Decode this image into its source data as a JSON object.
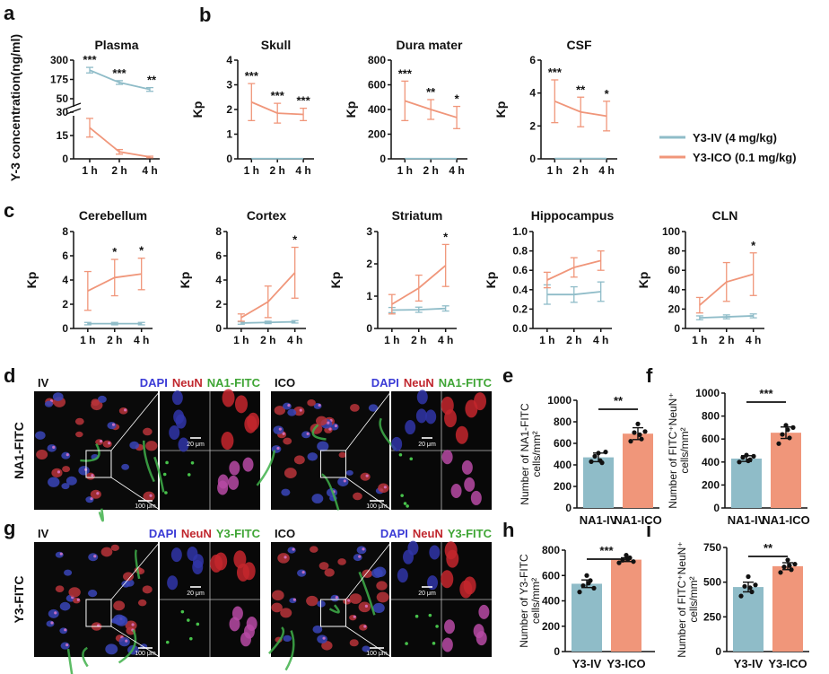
{
  "figure": {
    "colors": {
      "iv": "#8fbcc8",
      "ico": "#f0967a",
      "axis": "#111111",
      "dapi": "#3b3bd6",
      "neun": "#c0262d",
      "fitc": "#3fa535"
    },
    "panel_labels": {
      "a": "a",
      "b": "b",
      "c": "c",
      "d": "d",
      "e": "e",
      "f": "f",
      "g": "g",
      "h": "h",
      "i": "i"
    },
    "legend": {
      "iv": "Y3-IV (4 mg/kg)",
      "ico": "Y3-ICO (0.1 mg/kg)"
    },
    "micrographs": [
      {
        "condition": "IV",
        "stain_dapi": "DAPI",
        "stain_neun": "NeuN",
        "stain_fitc": "NA1-FITC",
        "scale_inset": "20 μm",
        "scale_main": "100 μm"
      },
      {
        "condition": "ICO",
        "stain_dapi": "DAPI",
        "stain_neun": "NeuN",
        "stain_fitc": "NA1-FITC",
        "scale_inset": "20 μm",
        "scale_main": "100 μm"
      },
      {
        "condition": "IV",
        "stain_dapi": "DAPI",
        "stain_neun": "NeuN",
        "stain_fitc": "Y3-FITC",
        "scale_inset": "20 μm",
        "scale_main": "100 μm"
      },
      {
        "condition": "ICO",
        "stain_dapi": "DAPI",
        "stain_neun": "NeuN",
        "stain_fitc": "Y3-FITC",
        "scale_inset": "20 μm",
        "scale_main": "100 μm"
      }
    ],
    "row_labels": {
      "d": "NA1-FITC",
      "g": "Y3-FITC"
    }
  },
  "chart_data": [
    {
      "id": "a",
      "type": "line",
      "title": "Plasma",
      "ylabel": "Y-3 concentration(ng/ml)",
      "xlabel": "",
      "categories": [
        "1 h",
        "2 h",
        "4 h"
      ],
      "broken_axis": true,
      "ylim_upper": [
        30,
        300
      ],
      "yticks_upper": [
        "300",
        "175",
        "50"
      ],
      "ylim_lower": [
        0,
        30
      ],
      "yticks_lower": [
        "30",
        "15",
        "0"
      ],
      "series": [
        {
          "name": "Y3-IV (4 mg/kg)",
          "values": [
            235,
            155,
            110
          ],
          "errors": [
            18,
            12,
            12
          ]
        },
        {
          "name": "Y3-ICO (0.1 mg/kg)",
          "values": [
            20,
            4.5,
            1.2
          ],
          "errors": [
            6,
            1.5,
            0.5
          ]
        }
      ],
      "annotations": [
        "***",
        "***",
        "**"
      ]
    },
    {
      "id": "skull",
      "type": "line",
      "title": "Skull",
      "ylabel": "Kp",
      "categories": [
        "1 h",
        "2 h",
        "4 h"
      ],
      "ylim": [
        0,
        4
      ],
      "yticks": [
        "0",
        "1",
        "2",
        "3",
        "4"
      ],
      "series": [
        {
          "name": "Y3-IV (4 mg/kg)",
          "values": [
            0.01,
            0.01,
            0.01
          ],
          "errors": [
            0,
            0,
            0
          ]
        },
        {
          "name": "Y3-ICO (0.1 mg/kg)",
          "values": [
            2.3,
            1.85,
            1.8
          ],
          "errors": [
            0.75,
            0.4,
            0.25
          ]
        }
      ],
      "annotations": [
        "***",
        "***",
        "***"
      ]
    },
    {
      "id": "dura",
      "type": "line",
      "title": "Dura mater",
      "ylabel": "Kp",
      "categories": [
        "1 h",
        "2 h",
        "4 h"
      ],
      "ylim": [
        0,
        800
      ],
      "yticks": [
        "0",
        "200",
        "400",
        "600",
        "800"
      ],
      "series": [
        {
          "name": "Y3-IV (4 mg/kg)",
          "values": [
            2,
            2,
            2
          ],
          "errors": [
            0,
            0,
            0
          ]
        },
        {
          "name": "Y3-ICO (0.1 mg/kg)",
          "values": [
            470,
            400,
            335
          ],
          "errors": [
            160,
            80,
            90
          ]
        }
      ],
      "annotations": [
        "***",
        "**",
        "*"
      ]
    },
    {
      "id": "csf",
      "type": "line",
      "title": "CSF",
      "ylabel": "Kp",
      "categories": [
        "1 h",
        "2 h",
        "4 h"
      ],
      "ylim": [
        0,
        6
      ],
      "yticks": [
        "0",
        "2",
        "4",
        "6"
      ],
      "series": [
        {
          "name": "Y3-IV (4 mg/kg)",
          "values": [
            0.02,
            0.02,
            0.02
          ],
          "errors": [
            0,
            0,
            0
          ]
        },
        {
          "name": "Y3-ICO (0.1 mg/kg)",
          "values": [
            3.5,
            2.85,
            2.6
          ],
          "errors": [
            1.3,
            0.9,
            0.9
          ]
        }
      ],
      "annotations": [
        "***",
        "**",
        "*"
      ]
    },
    {
      "id": "cerebellum",
      "type": "line",
      "title": "Cerebellum",
      "ylabel": "Kp",
      "categories": [
        "1 h",
        "2 h",
        "4 h"
      ],
      "ylim": [
        0,
        8
      ],
      "yticks": [
        "0",
        "2",
        "4",
        "6",
        "8"
      ],
      "series": [
        {
          "name": "Y3-IV (4 mg/kg)",
          "values": [
            0.4,
            0.4,
            0.4
          ],
          "errors": [
            0.1,
            0.1,
            0.1
          ]
        },
        {
          "name": "Y3-ICO (0.1 mg/kg)",
          "values": [
            3.1,
            4.2,
            4.5
          ],
          "errors": [
            1.6,
            1.5,
            1.3
          ]
        }
      ],
      "annotations": [
        "",
        "*",
        "*"
      ]
    },
    {
      "id": "cortex",
      "type": "line",
      "title": "Cortex",
      "ylabel": "Kp",
      "categories": [
        "1 h",
        "2 h",
        "4 h"
      ],
      "ylim": [
        0,
        8
      ],
      "yticks": [
        "0",
        "2",
        "4",
        "6",
        "8"
      ],
      "series": [
        {
          "name": "Y3-IV (4 mg/kg)",
          "values": [
            0.45,
            0.5,
            0.55
          ],
          "errors": [
            0.1,
            0.1,
            0.1
          ]
        },
        {
          "name": "Y3-ICO (0.1 mg/kg)",
          "values": [
            0.9,
            2.2,
            4.6
          ],
          "errors": [
            0.3,
            1.3,
            2.1
          ]
        }
      ],
      "annotations": [
        "",
        "",
        "*"
      ]
    },
    {
      "id": "striatum",
      "type": "line",
      "title": "Striatum",
      "ylabel": "Kp",
      "categories": [
        "1 h",
        "2 h",
        "4 h"
      ],
      "ylim": [
        0,
        3
      ],
      "yticks": [
        "0",
        "1",
        "2",
        "3"
      ],
      "series": [
        {
          "name": "Y3-IV (4 mg/kg)",
          "values": [
            0.57,
            0.58,
            0.62
          ],
          "errors": [
            0.08,
            0.08,
            0.08
          ]
        },
        {
          "name": "Y3-ICO (0.1 mg/kg)",
          "values": [
            0.75,
            1.25,
            1.95
          ],
          "errors": [
            0.3,
            0.4,
            0.65
          ]
        }
      ],
      "annotations": [
        "",
        "",
        "*"
      ]
    },
    {
      "id": "hippocampus",
      "type": "line",
      "title": "Hippocampus",
      "ylabel": "Kp",
      "categories": [
        "1 h",
        "2 h",
        "4 h"
      ],
      "ylim": [
        0,
        1
      ],
      "yticks": [
        "0.0",
        "0.2",
        "0.4",
        "0.6",
        "0.8",
        "1.0"
      ],
      "series": [
        {
          "name": "Y3-IV (4 mg/kg)",
          "values": [
            0.35,
            0.35,
            0.38
          ],
          "errors": [
            0.1,
            0.08,
            0.1
          ]
        },
        {
          "name": "Y3-ICO (0.1 mg/kg)",
          "values": [
            0.5,
            0.63,
            0.7
          ],
          "errors": [
            0.08,
            0.1,
            0.1
          ]
        }
      ],
      "annotations": [
        "",
        "",
        ""
      ]
    },
    {
      "id": "cln",
      "type": "line",
      "title": "CLN",
      "ylabel": "Kp",
      "categories": [
        "1 h",
        "2 h",
        "4 h"
      ],
      "ylim": [
        0,
        100
      ],
      "yticks": [
        "0",
        "20",
        "40",
        "60",
        "80",
        "100"
      ],
      "series": [
        {
          "name": "Y3-IV (4 mg/kg)",
          "values": [
            11,
            12,
            13
          ],
          "errors": [
            2,
            2,
            2
          ]
        },
        {
          "name": "Y3-ICO (0.1 mg/kg)",
          "values": [
            24,
            48,
            56
          ],
          "errors": [
            8,
            20,
            22
          ]
        }
      ],
      "annotations": [
        "",
        "",
        "*"
      ]
    },
    {
      "id": "e",
      "type": "bar",
      "ylabel_lines": [
        "Number of NA1-FITC",
        "cells/mm²"
      ],
      "categories": [
        "NA1-IV",
        "NA1-ICO"
      ],
      "values": [
        470,
        690
      ],
      "errors": [
        40,
        55
      ],
      "points": [
        [
          430,
          480,
          510,
          420,
          520,
          440
        ],
        [
          620,
          700,
          780,
          640,
          710,
          680
        ]
      ],
      "ylim": [
        0,
        1000
      ],
      "yticks": [
        "0",
        "200",
        "400",
        "600",
        "800",
        "1000"
      ],
      "significance": "**"
    },
    {
      "id": "f",
      "type": "bar",
      "ylabel_lines": [
        "Number of FITC⁺NeuN⁺",
        "cells/mm²"
      ],
      "categories": [
        "NA1-IV",
        "NA1-ICO"
      ],
      "values": [
        430,
        655
      ],
      "errors": [
        25,
        50
      ],
      "points": [
        [
          400,
          440,
          460,
          420,
          450,
          410
        ],
        [
          560,
          640,
          720,
          610,
          700,
          680
        ]
      ],
      "ylim": [
        0,
        1000
      ],
      "yticks": [
        "0",
        "200",
        "400",
        "600",
        "800",
        "1000"
      ],
      "significance": "***"
    },
    {
      "id": "h",
      "type": "bar",
      "ylabel_lines": [
        "Number of Y3-FITC",
        "cells/mm²"
      ],
      "categories": [
        "Y3-IV",
        "Y3-ICO"
      ],
      "values": [
        535,
        725
      ],
      "errors": [
        30,
        15
      ],
      "points": [
        [
          470,
          520,
          600,
          560,
          500,
          540
        ],
        [
          700,
          720,
          760,
          740,
          710,
          730
        ]
      ],
      "ylim": [
        0,
        800
      ],
      "yticks": [
        "0",
        "200",
        "400",
        "600",
        "800"
      ],
      "significance": "***"
    },
    {
      "id": "i",
      "type": "bar",
      "ylabel_lines": [
        "Number of FITC⁺NeuN⁺",
        "cells/mm²"
      ],
      "categories": [
        "Y3-IV",
        "Y3-ICO"
      ],
      "values": [
        465,
        615
      ],
      "errors": [
        35,
        25
      ],
      "points": [
        [
          400,
          470,
          540,
          430,
          480,
          460
        ],
        [
          570,
          610,
          660,
          590,
          630,
          620
        ]
      ],
      "ylim": [
        0,
        750
      ],
      "yticks": [
        "0",
        "250",
        "500",
        "750"
      ],
      "significance": "**"
    }
  ]
}
